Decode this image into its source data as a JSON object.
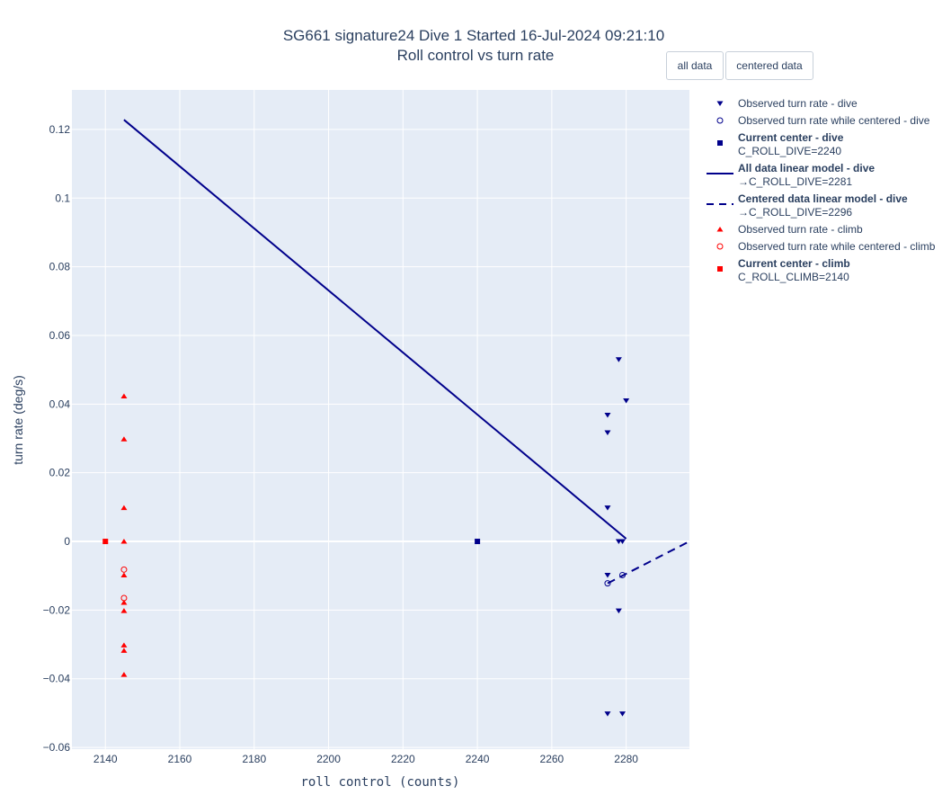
{
  "buttons": {
    "all_data": "all data",
    "centered_data": "centered data"
  },
  "chart_data": {
    "type": "scatter",
    "title": "SG661 signature24 Dive 1 Started 16-Jul-2024 09:21:10",
    "subtitle": "Roll control vs turn rate",
    "xlabel": "roll control (counts)",
    "ylabel": "turn rate (deg/s)",
    "xlim": [
      2131,
      2297
    ],
    "ylim": [
      -0.0605,
      0.1315
    ],
    "xticks": [
      2140,
      2160,
      2180,
      2200,
      2220,
      2240,
      2260,
      2280
    ],
    "yticks": [
      -0.06,
      -0.04,
      -0.02,
      0,
      0.02,
      0.04,
      0.06,
      0.08,
      0.1,
      0.12
    ],
    "ytick_labels": [
      "−0.06",
      "−0.04",
      "−0.02",
      "0",
      "0.02",
      "0.04",
      "0.06",
      "0.08",
      "0.1",
      "0.12"
    ],
    "grid": true,
    "legend_position": "right",
    "colors": {
      "dive": "#00008b",
      "climb": "#ff0000",
      "plot_bg": "#e5ecf6",
      "grid": "#ffffff"
    },
    "series": [
      {
        "name": "Observed turn rate - dive",
        "mode": "markers",
        "marker": "triangle-down",
        "color": "#00008b",
        "points": [
          [
            2278,
            0.053
          ],
          [
            2280,
            0.041
          ],
          [
            2275,
            0.0368
          ],
          [
            2275,
            0.0317
          ],
          [
            2275,
            0.0098
          ],
          [
            2278,
            0
          ],
          [
            2279,
            0
          ],
          [
            2275,
            -0.0098
          ],
          [
            2278,
            -0.0202
          ],
          [
            2275,
            -0.0502
          ],
          [
            2279,
            -0.0502
          ]
        ]
      },
      {
        "name": "Observed turn rate while centered - dive",
        "mode": "markers",
        "marker": "circle-open",
        "color": "#00008b",
        "points": [
          [
            2275,
            -0.0122
          ],
          [
            2279,
            -0.0098
          ]
        ]
      },
      {
        "name": "Current center - dive",
        "sublabel": "C_ROLL_DIVE=2240",
        "mode": "markers",
        "marker": "square",
        "color": "#00008b",
        "bold": true,
        "points": [
          [
            2240,
            0
          ]
        ]
      },
      {
        "name": "All data linear model - dive",
        "sublabel": "→C_ROLL_DIVE=2281",
        "mode": "line",
        "dash": "solid",
        "color": "#00008b",
        "bold": true,
        "points": [
          [
            2145,
            0.1228
          ],
          [
            2280,
            0.0008
          ]
        ]
      },
      {
        "name": "Centered data linear model - dive",
        "sublabel": "→C_ROLL_DIVE=2296",
        "mode": "line",
        "dash": "dashed",
        "color": "#00008b",
        "bold": true,
        "points": [
          [
            2275,
            -0.0122
          ],
          [
            2297,
            0
          ]
        ]
      },
      {
        "name": "Observed turn rate - climb",
        "mode": "markers",
        "marker": "triangle-up",
        "color": "#ff0000",
        "points": [
          [
            2145,
            0.0423
          ],
          [
            2145,
            0.0298
          ],
          [
            2145,
            0.0098
          ],
          [
            2145,
            0
          ],
          [
            2145,
            -0.0098
          ],
          [
            2145,
            -0.0178
          ],
          [
            2145,
            -0.0202
          ],
          [
            2145,
            -0.0302
          ],
          [
            2145,
            -0.0318
          ],
          [
            2145,
            -0.0388
          ]
        ]
      },
      {
        "name": "Observed turn rate while centered - climb",
        "mode": "markers",
        "marker": "circle-open",
        "color": "#ff0000",
        "points": [
          [
            2145,
            -0.0082
          ],
          [
            2145,
            -0.0165
          ]
        ]
      },
      {
        "name": "Current center - climb",
        "sublabel": "C_ROLL_CLIMB=2140",
        "mode": "markers",
        "marker": "square",
        "color": "#ff0000",
        "bold": true,
        "points": [
          [
            2140,
            0
          ]
        ]
      }
    ]
  }
}
